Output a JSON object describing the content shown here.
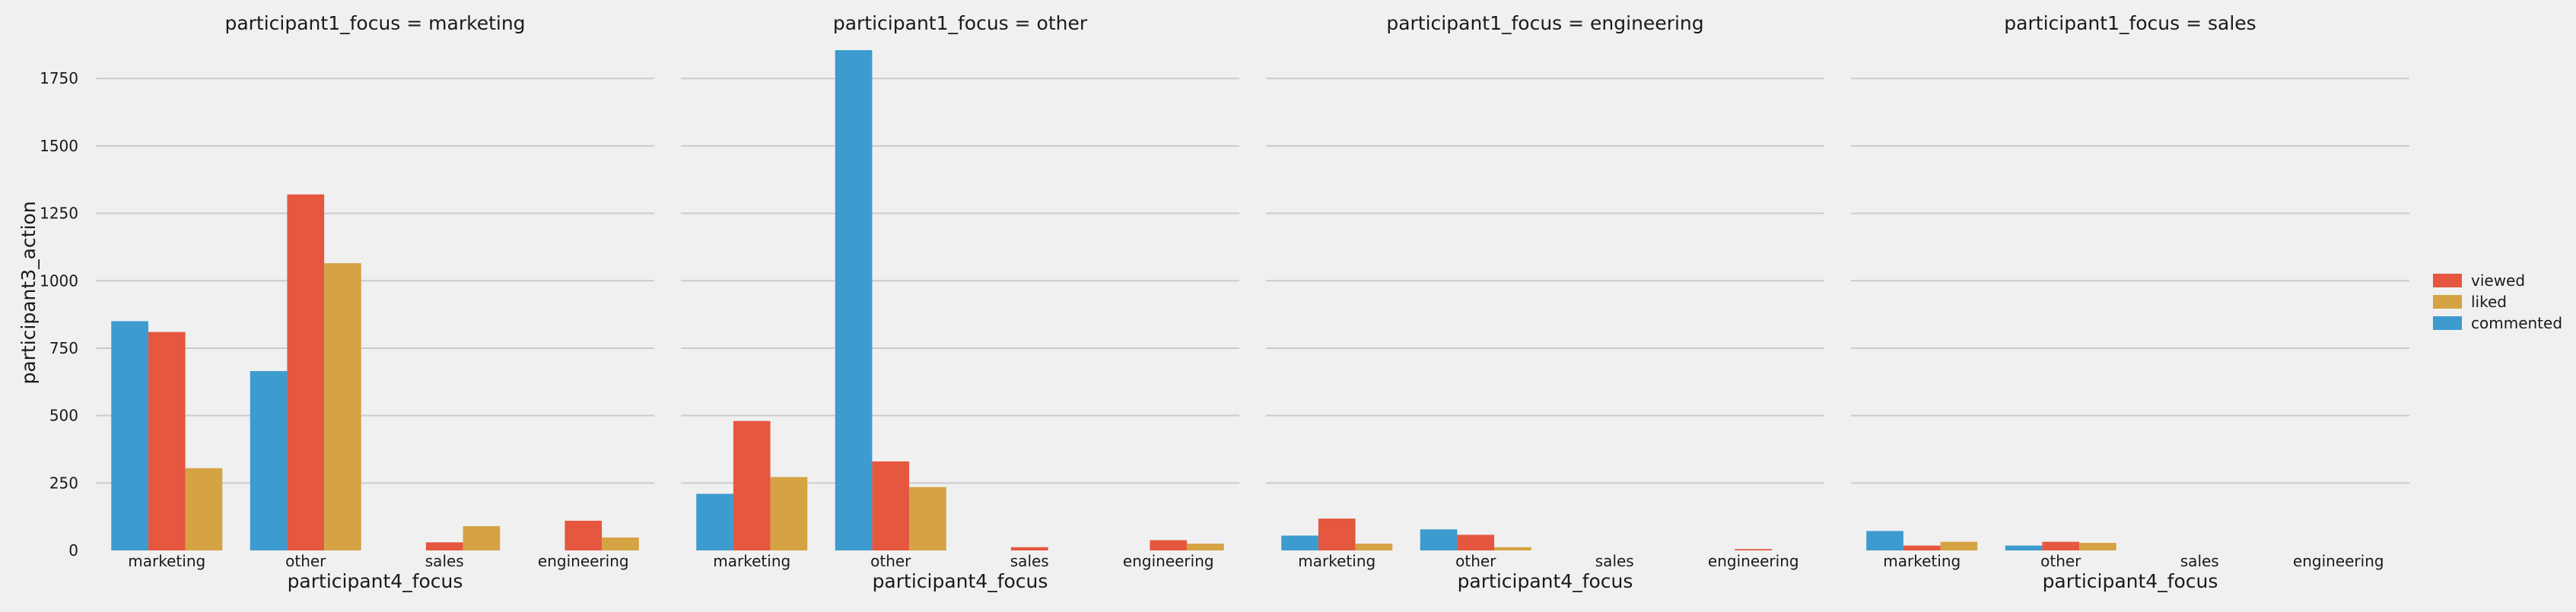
{
  "chart_data": {
    "type": "bar",
    "facet_variable": "participant1_focus",
    "ylabel": "participant3_action",
    "xlabel": "participant4_focus",
    "ylim": [
      0,
      1900
    ],
    "yticks": [
      0,
      250,
      500,
      750,
      1000,
      1250,
      1500,
      1750
    ],
    "ytick_labels": [
      "0",
      "250",
      "500",
      "750",
      "1000",
      "1250",
      "1500",
      "1750"
    ],
    "categories": [
      "marketing",
      "other",
      "sales",
      "engineering"
    ],
    "legend": {
      "position": "right",
      "entries": [
        {
          "name": "viewed",
          "color": "#e5573f"
        },
        {
          "name": "liked",
          "color": "#d5a343"
        },
        {
          "name": "commented",
          "color": "#3d9bcf"
        }
      ]
    },
    "series_order": [
      "commented",
      "viewed",
      "liked"
    ],
    "series_colors": {
      "commented": "#3d9bcf",
      "viewed": "#e5573f",
      "liked": "#d5a343"
    },
    "panels": [
      {
        "title": "participant1_focus = marketing",
        "series": [
          {
            "name": "commented",
            "values": [
              850,
              665,
              0,
              0
            ]
          },
          {
            "name": "viewed",
            "values": [
              810,
              1320,
              30,
              110
            ]
          },
          {
            "name": "liked",
            "values": [
              305,
              1065,
              90,
              48
            ]
          }
        ]
      },
      {
        "title": "participant1_focus = other",
        "series": [
          {
            "name": "commented",
            "values": [
              210,
              1855,
              0,
              0
            ]
          },
          {
            "name": "viewed",
            "values": [
              480,
              330,
              12,
              38
            ]
          },
          {
            "name": "liked",
            "values": [
              272,
              235,
              0,
              25
            ]
          }
        ]
      },
      {
        "title": "participant1_focus = engineering",
        "series": [
          {
            "name": "commented",
            "values": [
              55,
              78,
              0,
              0
            ]
          },
          {
            "name": "viewed",
            "values": [
              118,
              58,
              0,
              5
            ]
          },
          {
            "name": "liked",
            "values": [
              25,
              12,
              0,
              0
            ]
          }
        ]
      },
      {
        "title": "participant1_focus = sales",
        "series": [
          {
            "name": "commented",
            "values": [
              72,
              18,
              0,
              0
            ]
          },
          {
            "name": "viewed",
            "values": [
              18,
              32,
              0,
              0
            ]
          },
          {
            "name": "liked",
            "values": [
              32,
              28,
              0,
              0
            ]
          }
        ]
      }
    ]
  }
}
